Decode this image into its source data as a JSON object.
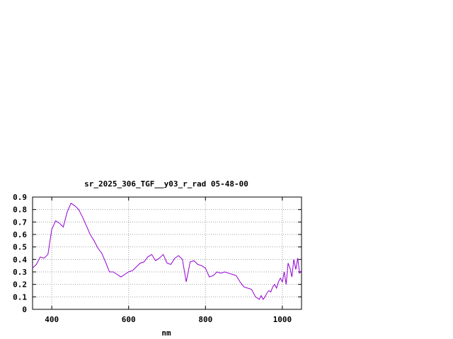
{
  "chart_data": {
    "type": "line",
    "title": "sr_2025_306_TGF__y03_r_rad 05-48-00",
    "xlabel": "nm",
    "ylabel": "",
    "xlim": [
      350,
      1050
    ],
    "ylim": [
      0,
      0.9
    ],
    "x_ticks": [
      400,
      600,
      800,
      1000
    ],
    "x_tick_labels": [
      "400",
      "600",
      "800",
      "1000"
    ],
    "y_ticks": [
      0,
      0.1,
      0.2,
      0.3,
      0.4,
      0.5,
      0.6,
      0.7,
      0.8,
      0.9
    ],
    "y_tick_labels": [
      "0",
      "0.1",
      "0.2",
      "0.3",
      "0.4",
      "0.5",
      "0.6",
      "0.7",
      "0.8",
      "0.9"
    ],
    "grid": true,
    "line_color": "#9400d3",
    "series": [
      {
        "x": [
          350,
          360,
          370,
          380,
          390,
          400,
          410,
          420,
          430,
          440,
          450,
          460,
          470,
          480,
          490,
          500,
          510,
          520,
          530,
          540,
          550,
          560,
          570,
          580,
          590,
          600,
          610,
          620,
          630,
          640,
          650,
          660,
          670,
          680,
          690,
          700,
          710,
          720,
          730,
          740,
          750,
          755,
          760,
          770,
          780,
          790,
          800,
          810,
          820,
          830,
          840,
          850,
          860,
          870,
          880,
          890,
          900,
          910,
          920,
          930,
          940,
          945,
          950,
          955,
          960,
          965,
          970,
          975,
          980,
          985,
          990,
          995,
          1000,
          1005,
          1010,
          1015,
          1020,
          1025,
          1030,
          1035,
          1040,
          1045,
          1050
        ],
        "y": [
          0.33,
          0.36,
          0.42,
          0.41,
          0.44,
          0.64,
          0.71,
          0.69,
          0.66,
          0.78,
          0.85,
          0.83,
          0.8,
          0.74,
          0.67,
          0.6,
          0.55,
          0.49,
          0.45,
          0.38,
          0.3,
          0.3,
          0.28,
          0.26,
          0.28,
          0.3,
          0.31,
          0.34,
          0.37,
          0.38,
          0.42,
          0.44,
          0.39,
          0.41,
          0.44,
          0.37,
          0.36,
          0.41,
          0.43,
          0.4,
          0.22,
          0.3,
          0.38,
          0.39,
          0.36,
          0.35,
          0.33,
          0.26,
          0.27,
          0.3,
          0.29,
          0.3,
          0.29,
          0.28,
          0.27,
          0.22,
          0.18,
          0.17,
          0.16,
          0.1,
          0.08,
          0.11,
          0.08,
          0.1,
          0.13,
          0.15,
          0.14,
          0.18,
          0.2,
          0.17,
          0.22,
          0.25,
          0.22,
          0.3,
          0.2,
          0.37,
          0.33,
          0.26,
          0.4,
          0.32,
          0.41,
          0.29,
          0.31
        ]
      }
    ]
  }
}
